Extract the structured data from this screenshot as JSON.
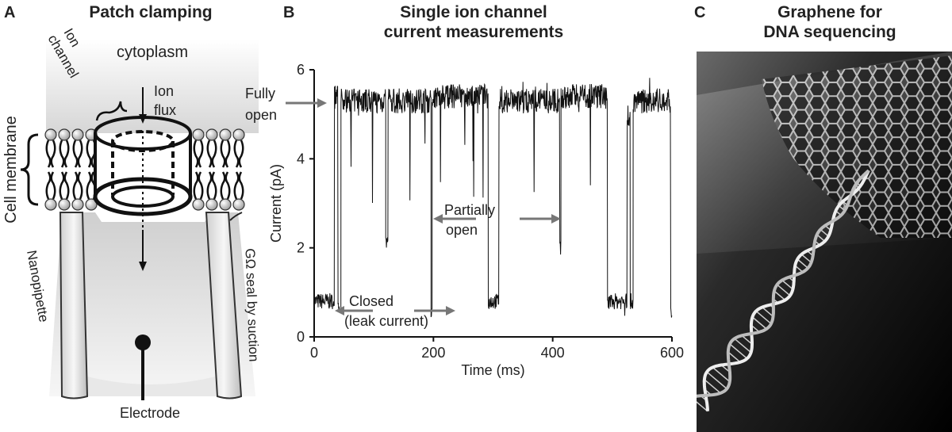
{
  "panel_a": {
    "letter": "A",
    "title": "Patch clamping",
    "label_cytoplasm": "cytoplasm",
    "label_ion_channel_1": "Ion",
    "label_ion_channel_2": "channel",
    "label_ion_flux_1": "Ion",
    "label_ion_flux_2": "flux",
    "label_cell_membrane": "Cell membrane",
    "label_nanopipette": "Nanopipette",
    "label_seal": "GΩ seal by suction",
    "label_electrode": "Electrode"
  },
  "panel_b": {
    "letter": "B",
    "title_line1": "Single ion channel",
    "title_line2": "current measurements",
    "label_fully_open_1": "Fully",
    "label_fully_open_2": "open",
    "label_partially_open_1": "Partially",
    "label_partially_open_2": "open",
    "label_closed_1": "Closed",
    "label_closed_2": "(leak current)"
  },
  "panel_c": {
    "letter": "C",
    "title_line1": "Graphene for",
    "title_line2": "DNA sequencing"
  },
  "chart_data": {
    "type": "line",
    "xlabel": "Time (ms)",
    "ylabel": "Current (pA)",
    "xlim": [
      0,
      600
    ],
    "ylim": [
      0,
      6
    ],
    "xticks": [
      0,
      200,
      400,
      600
    ],
    "yticks": [
      0,
      2,
      4,
      6
    ],
    "series": [
      {
        "levels": [
          {
            "t": [
              0,
              34
            ],
            "y": 0.8
          },
          {
            "t": [
              34,
              40
            ],
            "y": 5.4
          },
          {
            "t": [
              40,
              45
            ],
            "y": 0.6
          },
          {
            "t": [
              45,
              120
            ],
            "y": 5.3
          },
          {
            "t": [
              120,
              124
            ],
            "y": 2.1
          },
          {
            "t": [
              124,
              196
            ],
            "y": 5.3
          },
          {
            "t": [
              196,
              198
            ],
            "y": 0.5
          },
          {
            "t": [
              198,
              292
            ],
            "y": 5.4
          },
          {
            "t": [
              292,
              310
            ],
            "y": 0.8
          },
          {
            "t": [
              310,
              412
            ],
            "y": 5.3
          },
          {
            "t": [
              412,
              414
            ],
            "y": 2.0
          },
          {
            "t": [
              414,
              492
            ],
            "y": 5.4
          },
          {
            "t": [
              492,
              525
            ],
            "y": 0.8
          },
          {
            "t": [
              525,
              530
            ],
            "y": 5.0
          },
          {
            "t": [
              530,
              535
            ],
            "y": 0.8
          },
          {
            "t": [
              535,
              598
            ],
            "y": 5.3
          },
          {
            "t": [
              598,
              600
            ],
            "y": 0.6
          }
        ]
      }
    ]
  }
}
